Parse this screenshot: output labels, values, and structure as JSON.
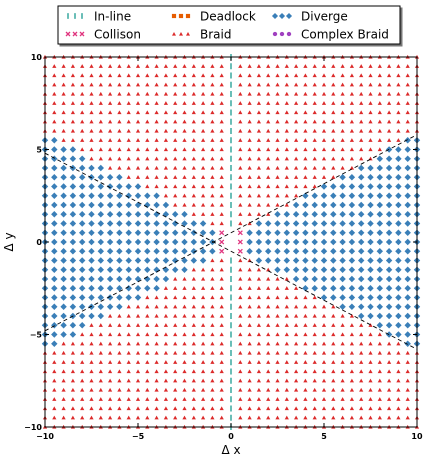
{
  "chart_data": {
    "type": "scatter",
    "xlabel": "Δ x",
    "ylabel": "Δ y",
    "xlim": [
      -10,
      10
    ],
    "ylim": [
      -10,
      10
    ],
    "xticks": [
      -10,
      -5,
      0,
      5,
      10
    ],
    "yticks": [
      -10,
      -5,
      0,
      5,
      10
    ],
    "grid": false,
    "legend_position": "top",
    "legend_entries": [
      {
        "name": "In-line",
        "marker": "vline",
        "color": "#2aa198"
      },
      {
        "name": "Collison",
        "marker": "x",
        "color": "#e0357f"
      },
      {
        "name": "Deadlock",
        "marker": "square",
        "color": "#e65c00"
      },
      {
        "name": "Braid",
        "marker": "triangle",
        "color": "#dc2a2a"
      },
      {
        "name": "Diverge",
        "marker": "diamond",
        "color": "#3a7fb8"
      },
      {
        "name": "Complex Braid",
        "marker": "circle",
        "color": "#a040c0"
      }
    ],
    "sampling": {
      "grid_step": 0.5,
      "x_range": [
        -10,
        10
      ],
      "y_range": [
        -10,
        10
      ]
    },
    "regions": {
      "in_line": "x = 0, all y",
      "collision": "|x| <= 0.5 and |y| <= 0.5",
      "diverge": "|y| < 0.56 * |x| + 0.3 (excluding x = 0)",
      "braid": "all remaining grid points"
    },
    "boundary_lines": [
      {
        "slope": 0.53,
        "intercept": 0.5
      },
      {
        "slope": -0.53,
        "intercept": -0.5
      }
    ]
  }
}
